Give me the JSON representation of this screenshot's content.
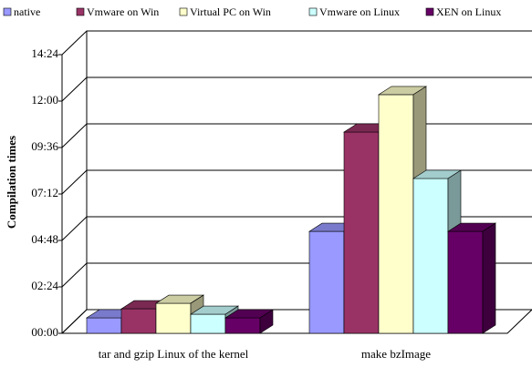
{
  "chart_data": {
    "type": "bar3d",
    "y_label": "Compilation times",
    "categories": [
      "tar and gzip Linux of the kernel",
      "make bzImage"
    ],
    "series": [
      {
        "name": "native",
        "color": "#9999ff",
        "values": [
          48,
          316
        ]
      },
      {
        "name": "Vmware on Win",
        "color": "#993366",
        "values": [
          76,
          624
        ]
      },
      {
        "name": "Virtual PC on Win",
        "color": "#ffffcc",
        "values": [
          93,
          740
        ]
      },
      {
        "name": "Vmware on Linux",
        "color": "#ccffff",
        "values": [
          59,
          480
        ]
      },
      {
        "name": "XEN on Linux",
        "color": "#660066",
        "values": [
          48,
          316
        ]
      }
    ],
    "ylim": [
      0,
      864
    ],
    "yticks": [
      {
        "value": 0,
        "label": "00:00"
      },
      {
        "value": 144,
        "label": "02:24"
      },
      {
        "value": 288,
        "label": "04:48"
      },
      {
        "value": 432,
        "label": "07:12"
      },
      {
        "value": 576,
        "label": "09:36"
      },
      {
        "value": 720,
        "label": "12:00"
      },
      {
        "value": 864,
        "label": "14:24"
      }
    ],
    "grid": true,
    "legend": "top"
  }
}
